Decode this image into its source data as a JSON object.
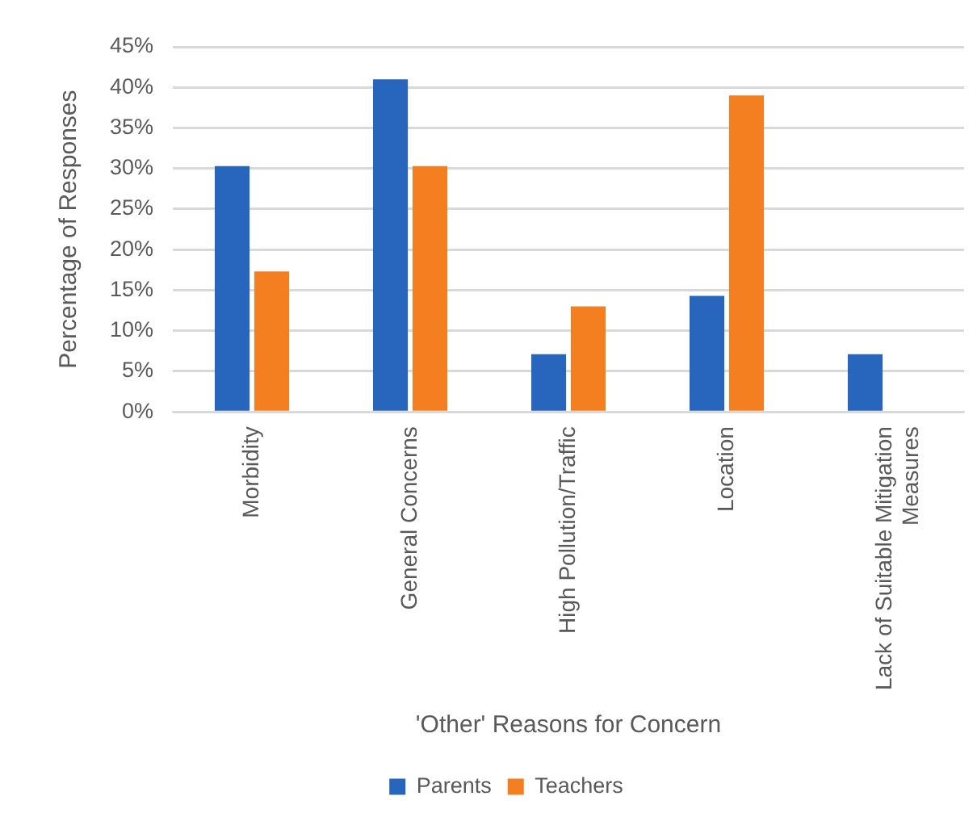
{
  "chart_data": {
    "type": "bar",
    "xlabel": "'Other' Reasons for Concern",
    "ylabel": "Percentage of Responses",
    "categories": [
      "Morbidity",
      "General Concerns",
      "High Pollution/Traffic",
      "Location",
      "Lack of Suitable Mitigation Measures"
    ],
    "series": [
      {
        "name": "Parents",
        "color": "#2866be",
        "values": [
          30.3,
          41.0,
          7.1,
          14.3,
          7.1
        ]
      },
      {
        "name": "Teachers",
        "color": "#f47f20",
        "values": [
          17.3,
          30.3,
          13.0,
          39.0,
          0
        ]
      }
    ],
    "ylim": [
      0,
      45
    ],
    "yticks": [
      {
        "value": 0,
        "label": "0%"
      },
      {
        "value": 5,
        "label": "5%"
      },
      {
        "value": 10,
        "label": "10%"
      },
      {
        "value": 15,
        "label": "15%"
      },
      {
        "value": 20,
        "label": "20%"
      },
      {
        "value": 25,
        "label": "25%"
      },
      {
        "value": 30,
        "label": "30%"
      },
      {
        "value": 35,
        "label": "35%"
      },
      {
        "value": 40,
        "label": "40%"
      },
      {
        "value": 45,
        "label": "45%"
      }
    ],
    "grid": "y",
    "legend": "bottom"
  }
}
